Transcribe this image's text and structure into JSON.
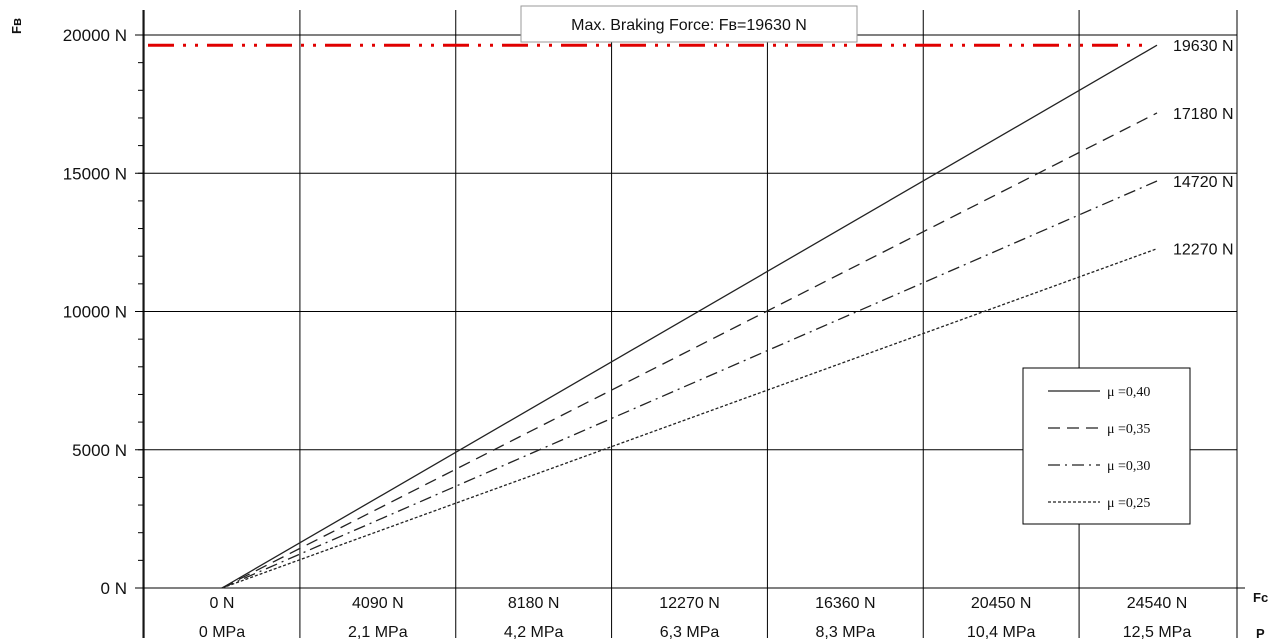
{
  "chart_data": {
    "type": "line",
    "annotation": "Max. Braking Force: Fʙ=19630 N",
    "y_axis_title": "Fʙ",
    "x_axis_title": "Fc",
    "x2_axis_title": "P",
    "ylim": [
      0,
      20000
    ],
    "xlim": [
      0,
      24540
    ],
    "y_ticks": [
      {
        "value": 0,
        "label": "0 N"
      },
      {
        "value": 5000,
        "label": "5000 N"
      },
      {
        "value": 10000,
        "label": "10000 N"
      },
      {
        "value": 15000,
        "label": "15000 N"
      },
      {
        "value": 20000,
        "label": "20000 N"
      }
    ],
    "x_ticks": [
      {
        "value": 0,
        "label": "0 N",
        "label2": "0 MPa"
      },
      {
        "value": 4090,
        "label": "4090 N",
        "label2": "2,1 MPa"
      },
      {
        "value": 8180,
        "label": "8180 N",
        "label2": "4,2 MPa"
      },
      {
        "value": 12270,
        "label": "12270 N",
        "label2": "6,3 MPa"
      },
      {
        "value": 16360,
        "label": "16360 N",
        "label2": "8,3 MPa"
      },
      {
        "value": 20450,
        "label": "20450 N",
        "label2": "10,4 MPa"
      },
      {
        "value": 24540,
        "label": "24540 N",
        "label2": "12,5 MPa"
      }
    ],
    "max_line": {
      "value": 19630,
      "color": "#e00000"
    },
    "series": [
      {
        "name": "μ =0,40",
        "x": [
          0,
          24540
        ],
        "y": [
          0,
          19630
        ],
        "end_label": "19630 N",
        "dash": "solid"
      },
      {
        "name": "μ =0,35",
        "x": [
          0,
          24540
        ],
        "y": [
          0,
          17180
        ],
        "end_label": "17180 N",
        "dash": "dashed"
      },
      {
        "name": "μ =0,30",
        "x": [
          0,
          24540
        ],
        "y": [
          0,
          14720
        ],
        "end_label": "14720 N",
        "dash": "dashdot"
      },
      {
        "name": "μ =0,25",
        "x": [
          0,
          24540
        ],
        "y": [
          0,
          12270
        ],
        "end_label": "12270 N",
        "dash": "dotted"
      }
    ],
    "grid": true,
    "legend_position": "bottom-right"
  }
}
